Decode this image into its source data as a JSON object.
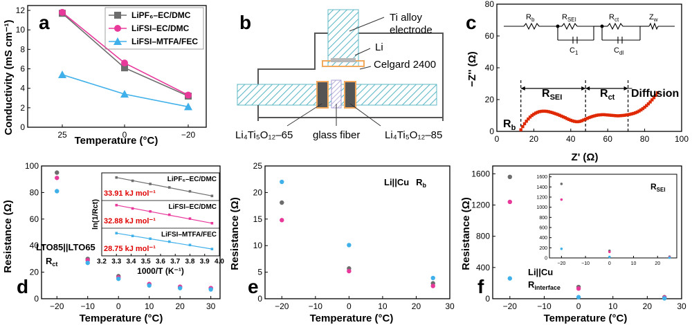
{
  "panels": {
    "a": "a",
    "b": "b",
    "c": "c",
    "d": "d",
    "e": "e",
    "f": "f"
  },
  "colors": {
    "gray": "#6d6d6d",
    "pink": "#e8399b",
    "blue": "#3fb0ea",
    "red": "#e02800",
    "hatch": "#5fb9c6",
    "orange": "#f3a95c"
  },
  "schematic": {
    "ti_label": "Ti alloy",
    "ti_label2": "electrode",
    "li": "Li",
    "celgard": "Celgard 2400",
    "lto65": "Li₄Ti₅O₁₂–65",
    "glass": "glass fiber",
    "lto85": "Li₄Ti₅O₁₂–85"
  },
  "circuit": {
    "rb": "R",
    "rb_sub": "b",
    "rsei": "R",
    "rsei_sub": "SEI",
    "rct": "R",
    "rct_sub": "ct",
    "zw": "Z",
    "zw_sub": "w",
    "c1": "C",
    "c1_sub": "1",
    "cdl": "C",
    "cdl_sub": "dl"
  },
  "nyquist_labels": {
    "rb": "R",
    "rb_sub": "b",
    "rsei": "R",
    "rsei_sub": "SEI",
    "rct": "R",
    "rct_sub": "ct",
    "diffusion": "Diffusion"
  },
  "annotations": {
    "d_cell": "LTO85||LTO65",
    "d_r": "R",
    "d_r_sub": "ct",
    "e_cell": "Li||Cu",
    "e_r": "R",
    "e_r_sub": "b",
    "f_cell": "Li||Cu",
    "f_r": "R",
    "f_r_sub": "interface",
    "f_inset": "R",
    "f_inset_sub": "SEI",
    "ea1": "33.91 kJ mol⁻¹",
    "ea2": "32.88 kJ mol⁻¹",
    "ea3": "28.75 kJ mol⁻¹"
  },
  "chart_data": [
    {
      "panel": "a",
      "type": "line",
      "xlabel": "Temperature (°C)",
      "ylabel": "Conductivity (mS cm⁻¹)",
      "x_ticks": [
        "25",
        "0",
        "−20"
      ],
      "y_ticks": [
        "0",
        "2",
        "4",
        "6",
        "8",
        "10",
        "12"
      ],
      "ylim": [
        0,
        12.5
      ],
      "categories": [
        "25",
        "0",
        "−20"
      ],
      "series": [
        {
          "name": "LiPF₆–EC/DMC",
          "color": "#6d6d6d",
          "marker": "square",
          "values": [
            11.7,
            6.1,
            3.2
          ]
        },
        {
          "name": "LiFSI–EC/DMC",
          "color": "#e8399b",
          "marker": "circle",
          "values": [
            11.8,
            6.6,
            3.3
          ]
        },
        {
          "name": "LiFSI–MTFA/FEC",
          "color": "#3fb0ea",
          "marker": "triangle",
          "values": [
            5.4,
            3.4,
            2.1
          ]
        }
      ]
    },
    {
      "panel": "c",
      "type": "scatter",
      "xlabel": "Z' (Ω)",
      "ylabel": "−Z'' (Ω)",
      "x_ticks": [
        "0",
        "20",
        "40",
        "60",
        "80",
        "100"
      ],
      "y_ticks": [
        "0",
        "20",
        "40",
        "60",
        "80"
      ],
      "xlim": [
        0,
        100
      ],
      "ylim": [
        0,
        80
      ],
      "dividers": [
        13,
        48,
        71
      ],
      "series": [
        {
          "name": "",
          "color": "#e02800",
          "x": [
            13,
            14,
            15,
            16,
            17,
            18,
            19,
            20,
            21,
            22,
            23,
            24,
            25,
            26,
            27,
            28,
            29,
            30,
            31,
            32,
            33,
            34,
            35,
            36,
            37,
            38,
            39,
            40,
            41,
            42,
            43,
            44,
            45,
            46,
            47,
            48,
            49,
            50,
            51,
            52,
            53,
            54,
            55,
            56,
            57,
            58,
            59,
            60,
            61,
            62,
            63,
            64,
            65,
            66,
            67,
            68,
            69,
            70,
            71,
            72,
            73,
            74,
            75,
            76,
            77,
            78,
            79,
            80,
            81,
            82,
            83,
            84,
            85,
            86,
            87
          ],
          "y": [
            1.0,
            3.0,
            4.8,
            6.4,
            7.8,
            9.0,
            10.0,
            10.8,
            11.5,
            12.0,
            12.4,
            12.6,
            12.7,
            12.7,
            12.6,
            12.4,
            12.1,
            11.8,
            11.4,
            11.0,
            10.6,
            10.1,
            9.6,
            9.1,
            8.6,
            8.0,
            7.5,
            7.0,
            6.6,
            6.3,
            6.1,
            6.1,
            6.3,
            6.7,
            7.2,
            7.7,
            8.2,
            8.7,
            9.1,
            9.5,
            9.8,
            10.1,
            10.3,
            10.4,
            10.5,
            10.5,
            10.4,
            10.3,
            10.2,
            10.1,
            10.0,
            9.9,
            9.8,
            9.8,
            9.9,
            10.0,
            10.1,
            10.3,
            10.5,
            10.7,
            11.0,
            11.3,
            11.7,
            12.2,
            12.8,
            13.5,
            14.3,
            15.2,
            16.2,
            17.3,
            18.5,
            19.8,
            21.2,
            22.7,
            24.3
          ]
        }
      ]
    },
    {
      "panel": "d",
      "type": "scatter",
      "xlabel": "Temperature (°C)",
      "ylabel": "Resistance (Ω)",
      "x_ticks": [
        "−20",
        "−10",
        "0",
        "10",
        "20",
        "30"
      ],
      "y_ticks": [
        "0",
        "20",
        "40",
        "60",
        "80",
        "100"
      ],
      "xlim": [
        -25,
        33
      ],
      "ylim": [
        0,
        100
      ],
      "series": [
        {
          "name": "LiPF₆–EC/DMC",
          "color": "#6d6d6d",
          "x": [
            -20,
            -10,
            0,
            10,
            20,
            30
          ],
          "y": [
            95,
            30,
            17,
            11,
            9,
            8
          ]
        },
        {
          "name": "LiFSI–EC/DMC",
          "color": "#e8399b",
          "x": [
            -20,
            -10,
            0,
            10,
            20,
            30
          ],
          "y": [
            91,
            29,
            16,
            11,
            9,
            8
          ]
        },
        {
          "name": "LiFSI–MTFA/FEC",
          "color": "#3fb0ea",
          "x": [
            -20,
            -10,
            0,
            10,
            20,
            30
          ],
          "y": [
            81,
            27,
            15,
            10,
            8,
            7
          ]
        }
      ]
    },
    {
      "panel": "d-inset",
      "type": "scatter",
      "xlabel": "1000/T (K⁻¹)",
      "ylabel": "ln(1/Rct)",
      "x_ticks": [
        "3.2",
        "3.3",
        "3.4",
        "3.5",
        "3.6",
        "3.7",
        "3.8",
        "3.9",
        "4.0"
      ],
      "xlim": [
        3.2,
        4.0
      ],
      "series": [
        {
          "name": "LiPF₆–EC/DMC",
          "color": "#6d6d6d",
          "x": [
            3.3,
            3.41,
            3.53,
            3.66,
            3.8,
            3.95
          ],
          "y": [
            0.9,
            0.72,
            0.55,
            0.36,
            0.15,
            -0.1
          ]
        },
        {
          "name": "LiFSI–EC/DMC",
          "color": "#e8399b",
          "x": [
            3.3,
            3.41,
            3.53,
            3.66,
            3.8,
            3.95
          ],
          "y": [
            0.9,
            0.72,
            0.56,
            0.38,
            0.17,
            -0.08
          ]
        },
        {
          "name": "LiFSI–MTFA/FEC",
          "color": "#3fb0ea",
          "x": [
            3.3,
            3.41,
            3.53,
            3.66,
            3.8,
            3.95
          ],
          "y": [
            0.88,
            0.73,
            0.58,
            0.42,
            0.24,
            0.02
          ]
        }
      ]
    },
    {
      "panel": "e",
      "type": "scatter",
      "xlabel": "Temperature (°C)",
      "ylabel": "Resistance (Ω)",
      "x_ticks": [
        "−20",
        "−10",
        "0",
        "10",
        "20",
        "30"
      ],
      "y_ticks": [
        "0",
        "5",
        "10",
        "15",
        "20",
        "25"
      ],
      "xlim": [
        -25,
        30
      ],
      "ylim": [
        0,
        25
      ],
      "series": [
        {
          "name": "LiPF₆–EC/DMC",
          "color": "#6d6d6d",
          "x": [
            -20,
            0,
            25
          ],
          "y": [
            18.1,
            5.7,
            2.9
          ]
        },
        {
          "name": "LiFSI–EC/DMC",
          "color": "#e8399b",
          "x": [
            -20,
            0,
            25
          ],
          "y": [
            14.8,
            5.2,
            2.4
          ]
        },
        {
          "name": "LiFSI–MTFA/FEC",
          "color": "#3fb0ea",
          "x": [
            -20,
            0,
            25
          ],
          "y": [
            22.0,
            10.1,
            3.9
          ]
        }
      ]
    },
    {
      "panel": "f",
      "type": "scatter",
      "xlabel": "Temperature (°C)",
      "ylabel": "Resistance (Ω)",
      "x_ticks": [
        "−20",
        "−10",
        "0",
        "10",
        "20",
        "30"
      ],
      "y_ticks": [
        "0",
        "400",
        "800",
        "1200",
        "1600"
      ],
      "xlim": [
        -25,
        30
      ],
      "ylim": [
        0,
        1700
      ],
      "series": [
        {
          "name": "LiPF₆–EC/DMC",
          "color": "#6d6d6d",
          "x": [
            -20,
            0,
            25
          ],
          "y": [
            1560,
            150,
            20
          ]
        },
        {
          "name": "LiFSI–EC/DMC",
          "color": "#e8399b",
          "x": [
            -20,
            0,
            25
          ],
          "y": [
            1240,
            130,
            15
          ]
        },
        {
          "name": "LiFSI–MTFA/FEC",
          "color": "#3fb0ea",
          "x": [
            -20,
            0,
            25
          ],
          "y": [
            260,
            20,
            5
          ]
        }
      ]
    },
    {
      "panel": "f-inset",
      "type": "scatter",
      "x_ticks": [
        "−20",
        "−10",
        "0",
        "10",
        "20"
      ],
      "y_ticks": [
        "0",
        "200",
        "400",
        "600",
        "800",
        "1000",
        "1200",
        "1400",
        "1600"
      ],
      "xlim": [
        -25,
        28
      ],
      "ylim": [
        0,
        1650
      ],
      "series": [
        {
          "name": "LiPF₆–EC/DMC",
          "color": "#6d6d6d",
          "x": [
            -20,
            0,
            25
          ],
          "y": [
            1460,
            140,
            25
          ]
        },
        {
          "name": "LiFSI–EC/DMC",
          "color": "#e8399b",
          "x": [
            -20,
            0,
            25
          ],
          "y": [
            1150,
            120,
            15
          ]
        },
        {
          "name": "LiFSI–MTFA/FEC",
          "color": "#3fb0ea",
          "x": [
            -20,
            0,
            25
          ],
          "y": [
            180,
            20,
            5
          ]
        }
      ]
    }
  ]
}
